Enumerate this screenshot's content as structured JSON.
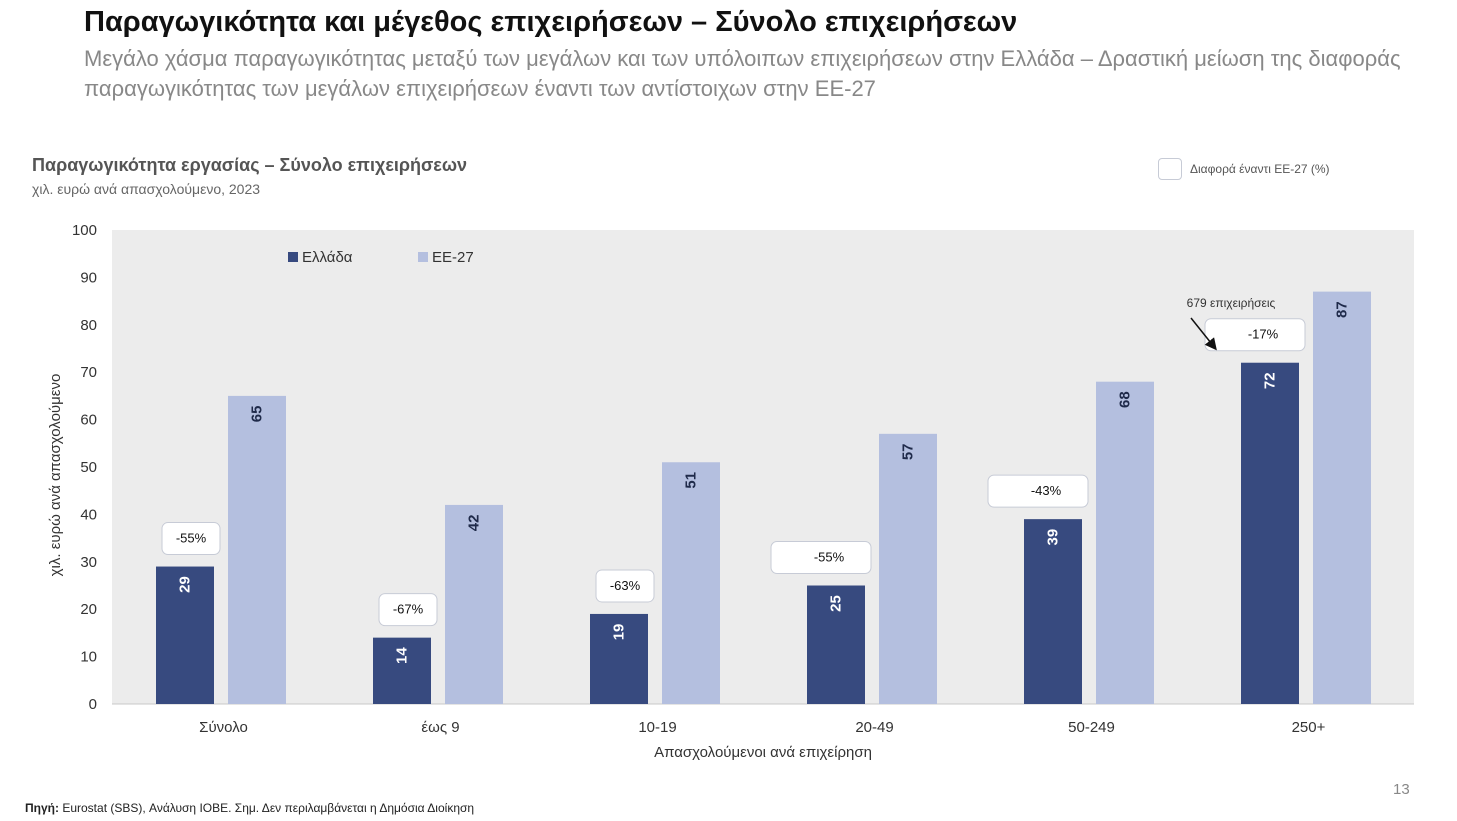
{
  "header": {
    "title": "Παραγωγικότητα και μέγεθος επιχειρήσεων – Σύνολο επιχειρήσεων",
    "subtitle": "Μεγάλο χάσμα παραγωγικότητας μεταξύ των μεγάλων και των υπόλοιπων επιχειρήσεων στην Ελλάδα – Δραστική μείωση της διαφοράς παραγωγικότητας των μεγάλων επιχειρήσεων έναντι των αντίστοιχων στην ΕΕ-27"
  },
  "chart_header": {
    "title": "Παραγωγικότητα εργασίας – Σύνολο επιχειρήσεων",
    "subtitle": "χιλ. ευρώ ανά απασχολούμενο, 2023"
  },
  "diff_legend_label": "Διαφορά έναντι ΕΕ-27 (%)",
  "chart_data": {
    "type": "bar",
    "categories": [
      "Σύνολο",
      "έως 9",
      "10-19",
      "20-49",
      "50-249",
      "250+"
    ],
    "series": [
      {
        "name": "Ελλάδα",
        "values": [
          29,
          14,
          19,
          25,
          39,
          72
        ],
        "color": "#374a7f"
      },
      {
        "name": "ΕΕ-27",
        "values": [
          65,
          42,
          51,
          57,
          68,
          87
        ],
        "color": "#b4bfdf"
      }
    ],
    "differences": [
      "-55%",
      "-67%",
      "-63%",
      "-55%",
      "-43%",
      "-17%"
    ],
    "xlabel": "Απασχολούμενοι ανά επιχείρηση",
    "ylabel": "χιλ. ευρώ ανά απασχολούμενο",
    "ylim": [
      0,
      100
    ],
    "yticks": [
      0,
      10,
      20,
      30,
      40,
      50,
      60,
      70,
      80,
      90,
      100
    ],
    "grid": false,
    "plot_background": "#ececec",
    "legend_position": "top-left",
    "annotation": {
      "text": "679 επιχειρήσεις",
      "target_category": "250+"
    }
  },
  "footer": {
    "page_number": "13",
    "source_label": "Πηγή:",
    "source_text": " Eurostat (SBS), Ανάλυση ΙΟΒΕ. Σημ. Δεν περιλαμβάνεται η Δημόσια Διοίκηση"
  }
}
